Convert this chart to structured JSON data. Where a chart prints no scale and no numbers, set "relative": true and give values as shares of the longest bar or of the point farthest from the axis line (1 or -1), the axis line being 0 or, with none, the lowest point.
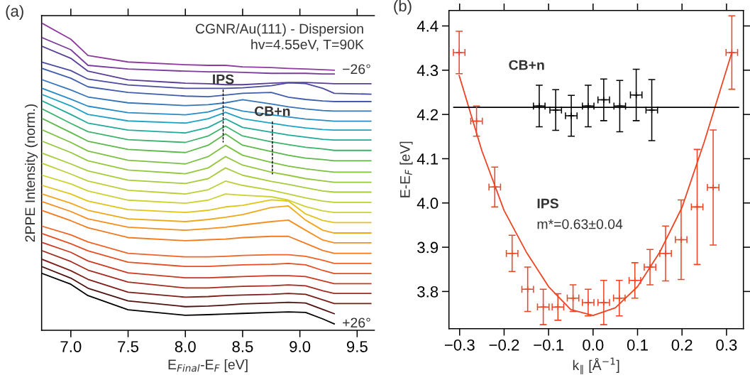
{
  "chart_data": [
    {
      "type": "line",
      "title": "(a)",
      "xlabel": "E$_{Final}$-E$_{F}$ [eV]",
      "ylabel": "2PPE Intensity (norm.)",
      "relative": true,
      "xlim": [
        6.745,
        9.65
      ],
      "xticks": [
        {
          "value": 7.0,
          "label": "7.0"
        },
        7.5,
        {
          "value": 8.0,
          "label": "8.0"
        },
        8.5,
        {
          "value": 9.0,
          "label": "9.0"
        },
        9.5
      ],
      "x": [
        6.75,
        7.0,
        7.15,
        7.5,
        8.0,
        8.2,
        8.35,
        8.5,
        8.75,
        8.9,
        9.05,
        9.2,
        9.3,
        9.62
      ],
      "annotations": [
        "CGNR/Au(111) - Dispersion",
        "hv=4.55eV, T=90K",
        {
          "text": "IPS",
          "x": 8.33,
          "y": 0.613
        },
        {
          "text": "CB+n",
          "x": 8.76,
          "y": 0.509
        }
      ],
      "series": [
        {
          "name": "−26°",
          "color": "#8e3a9f",
          "x": [
            6.75,
            7.0,
            7.15,
            7.5,
            8.0,
            8.2,
            8.35,
            8.5,
            8.75,
            8.9,
            9.05,
            9.2,
            9.3
          ],
          "values": [
            1.0,
            0.948,
            0.895,
            0.874,
            0.865,
            0.863,
            0.863,
            0.858,
            0.856,
            0.853,
            0.851,
            0.849,
            0.847
          ]
        },
        {
          "color": "#7b3c9c",
          "x": [
            6.75,
            7.0,
            7.15,
            7.5,
            8.0,
            8.2,
            8.35,
            8.5,
            8.75,
            8.9,
            9.05,
            9.2,
            9.3
          ],
          "values": [
            0.953,
            0.914,
            0.863,
            0.851,
            0.844,
            0.842,
            0.842,
            0.84,
            0.837,
            0.837,
            0.837,
            0.835,
            0.835
          ]
        },
        {
          "color": "#5a3f98",
          "values": [
            0.925,
            0.886,
            0.844,
            0.816,
            0.805,
            0.803,
            0.8,
            0.8,
            0.805,
            0.807,
            0.807,
            0.805,
            0.803,
            0.803
          ]
        },
        {
          "color": "#4a4c9e",
          "values": [
            0.873,
            0.846,
            0.818,
            0.799,
            0.788,
            0.788,
            0.788,
            0.79,
            0.797,
            0.806,
            0.804,
            0.788,
            0.772,
            0.769
          ]
        },
        {
          "color": "#3f5fab",
          "values": [
            0.853,
            0.821,
            0.793,
            0.775,
            0.763,
            0.761,
            0.766,
            0.772,
            0.775,
            0.759,
            0.752,
            0.747,
            0.745,
            0.745
          ]
        },
        {
          "color": "#3575b8",
          "values": [
            0.816,
            0.783,
            0.76,
            0.741,
            0.732,
            0.735,
            0.741,
            0.751,
            0.737,
            0.728,
            0.721,
            0.716,
            0.714,
            0.714
          ]
        },
        {
          "color": "#2a8cc4",
          "values": [
            0.788,
            0.753,
            0.73,
            0.709,
            0.702,
            0.711,
            0.728,
            0.714,
            0.702,
            0.695,
            0.688,
            0.684,
            0.681,
            0.681
          ]
        },
        {
          "color": "#1ea3c4",
          "values": [
            0.768,
            0.731,
            0.703,
            0.682,
            0.675,
            0.689,
            0.71,
            0.689,
            0.675,
            0.666,
            0.659,
            0.654,
            0.652,
            0.652
          ]
        },
        {
          "color": "#22a99a",
          "values": [
            0.747,
            0.703,
            0.675,
            0.652,
            0.643,
            0.661,
            0.689,
            0.661,
            0.645,
            0.636,
            0.629,
            0.622,
            0.62,
            0.62
          ]
        },
        {
          "color": "#3db36e",
          "values": [
            0.721,
            0.674,
            0.647,
            0.621,
            0.612,
            0.633,
            0.665,
            0.633,
            0.614,
            0.605,
            0.596,
            0.591,
            0.586,
            0.586
          ]
        },
        {
          "color": "#5cb94a",
          "values": [
            0.69,
            0.644,
            0.616,
            0.589,
            0.579,
            0.603,
            0.64,
            0.603,
            0.582,
            0.57,
            0.561,
            0.556,
            0.552,
            0.552
          ]
        },
        {
          "color": "#7cc142",
          "values": [
            0.653,
            0.612,
            0.584,
            0.554,
            0.542,
            0.566,
            0.603,
            0.57,
            0.547,
            0.535,
            0.526,
            0.519,
            0.515,
            0.515
          ]
        },
        {
          "color": "#95c83d",
          "values": [
            0.616,
            0.579,
            0.552,
            0.522,
            0.51,
            0.529,
            0.566,
            0.538,
            0.515,
            0.505,
            0.494,
            0.487,
            0.482,
            0.482
          ]
        },
        {
          "color": "#a8cc3a",
          "values": [
            0.577,
            0.542,
            0.519,
            0.489,
            0.478,
            0.494,
            0.529,
            0.505,
            0.485,
            0.475,
            0.464,
            0.454,
            0.45,
            0.45
          ]
        },
        {
          "color": "#bccf36",
          "values": [
            0.544,
            0.509,
            0.486,
            0.456,
            0.444,
            0.458,
            0.486,
            0.472,
            0.456,
            0.444,
            0.431,
            0.421,
            0.417,
            0.417
          ]
        },
        {
          "color": "#cdd22f",
          "values": [
            0.505,
            0.477,
            0.454,
            0.424,
            0.414,
            0.424,
            0.444,
            0.44,
            0.435,
            0.424,
            0.403,
            0.389,
            0.384,
            0.384
          ]
        },
        {
          "color": "#e1c419",
          "values": [
            0.472,
            0.444,
            0.421,
            0.393,
            0.384,
            0.391,
            0.402,
            0.407,
            0.425,
            0.421,
            0.379,
            0.358,
            0.351,
            0.351
          ]
        },
        {
          "color": "#f0a81a",
          "values": [
            0.444,
            0.414,
            0.391,
            0.363,
            0.354,
            0.361,
            0.368,
            0.377,
            0.4,
            0.405,
            0.359,
            0.326,
            0.317,
            0.317
          ]
        },
        {
          "color": "#f58e1f",
          "values": [
            0.419,
            0.387,
            0.363,
            0.336,
            0.326,
            0.331,
            0.336,
            0.343,
            0.354,
            0.359,
            0.326,
            0.294,
            0.285,
            0.285
          ]
        },
        {
          "color": "#f47a20",
          "values": [
            0.39,
            0.357,
            0.334,
            0.302,
            0.292,
            0.295,
            0.297,
            0.302,
            0.306,
            0.306,
            0.283,
            0.26,
            0.251,
            0.251
          ]
        },
        {
          "color": "#ee6424",
          "values": [
            0.339,
            0.311,
            0.288,
            0.251,
            0.239,
            0.239,
            0.241,
            0.244,
            0.246,
            0.246,
            0.241,
            0.228,
            0.218,
            0.218
          ]
        },
        {
          "color": "#e44f25",
          "values": [
            0.315,
            0.282,
            0.259,
            0.222,
            0.208,
            0.208,
            0.211,
            0.213,
            0.215,
            0.218,
            0.213,
            0.195,
            0.185,
            0.185
          ]
        },
        {
          "color": "#c83a22",
          "values": [
            0.286,
            0.254,
            0.226,
            0.187,
            0.171,
            0.171,
            0.173,
            0.175,
            0.178,
            0.178,
            0.175,
            0.161,
            0.152,
            0.152
          ]
        },
        {
          "color": "#a32b1f",
          "values": [
            0.259,
            0.224,
            0.196,
            0.157,
            0.138,
            0.138,
            0.141,
            0.143,
            0.145,
            0.148,
            0.145,
            0.129,
            0.12,
            0.12
          ]
        },
        {
          "color": "#7c1d17",
          "values": [
            0.231,
            0.194,
            0.166,
            0.124,
            0.108,
            0.11,
            0.113,
            0.115,
            0.117,
            0.12,
            0.117,
            0.099,
            0.087,
            0.087
          ]
        },
        {
          "color": "#4e120f",
          "x": [
            6.75,
            7.0,
            7.15,
            7.5,
            8.0,
            8.2,
            8.35,
            8.5,
            8.75,
            8.9,
            9.05,
            9.2,
            9.3
          ],
          "values": [
            0.207,
            0.17,
            0.137,
            0.096,
            0.077,
            0.079,
            0.082,
            0.086,
            0.089,
            0.091,
            0.089,
            0.068,
            0.054
          ]
        },
        {
          "name": "+26°",
          "color": "#000000",
          "x": [
            6.75,
            7.0,
            7.15,
            7.5,
            8.0,
            8.2,
            8.35,
            8.5,
            8.75,
            8.9,
            9.05,
            9.2,
            9.3
          ],
          "values": [
            0.185,
            0.15,
            0.113,
            0.067,
            0.049,
            0.051,
            0.053,
            0.055,
            0.058,
            0.06,
            0.058,
            0.037,
            0.021
          ]
        }
      ]
    },
    {
      "type": "scatter",
      "title": "(b)",
      "xlabel": "k$_{∥}$ [Å$^{−1}$]",
      "ylabel": "E-E$_{F}$ [eV]",
      "marker": "cross",
      "xlim": [
        -0.324,
        0.338
      ],
      "xticks": [
        {
          "value": -0.3,
          "label": "−0.3"
        },
        {
          "value": -0.2,
          "label": "−0.2"
        },
        {
          "value": -0.1,
          "label": "−0.1"
        },
        {
          "value": 0.0,
          "label": "0.0"
        },
        0.1,
        0.2,
        0.3
      ],
      "ylim": [
        3.716,
        4.435
      ],
      "yticks": [
        3.8,
        3.9,
        {
          "value": 4.0,
          "label": "4.0"
        },
        4.1,
        4.2,
        4.3,
        4.4
      ],
      "annotations": [
        "CB+n",
        "IPS",
        "m*=0.63±0.04"
      ],
      "series": [
        {
          "type": "line",
          "marker": "none",
          "color": "#ee4423",
          "x": [
            -0.301,
            -0.25,
            -0.2,
            -0.15,
            -0.1,
            -0.05,
            0.0,
            0.05,
            0.1,
            0.15,
            0.2,
            0.25,
            0.312
          ],
          "values": [
            4.288,
            4.118,
            3.983,
            3.889,
            3.811,
            3.759,
            3.746,
            3.763,
            3.811,
            3.889,
            3.99,
            4.138,
            4.34
          ]
        },
        {
          "type": "line",
          "marker": "none",
          "color": "#000000",
          "x": [
            -0.313,
            0.327
          ],
          "values": [
            4.216,
            4.216
          ]
        },
        {
          "color": "#ee4423",
          "x": [
            -0.301,
            -0.262,
            -0.221,
            -0.182,
            -0.147,
            -0.112,
            -0.079,
            -0.045,
            -0.011,
            0.024,
            0.059,
            0.094,
            0.128,
            0.163,
            0.198,
            0.234,
            0.27,
            0.312
          ],
          "values": [
            4.34,
            4.185,
            4.036,
            3.886,
            3.805,
            3.765,
            3.765,
            3.785,
            3.775,
            3.775,
            3.785,
            3.825,
            3.855,
            3.886,
            3.917,
            3.991,
            4.035,
            4.34
          ],
          "errors": [
            0.048,
            0.034,
            0.045,
            0.041,
            0.05,
            0.04,
            0.03,
            0.03,
            0.03,
            0.05,
            0.04,
            0.04,
            0.04,
            0.062,
            0.09,
            0.13,
            0.13,
            0.083
          ],
          "xerrors": [
            0.013,
            0.013,
            0.013,
            0.013,
            0.013,
            0.013,
            0.013,
            0.013,
            0.013,
            0.013,
            0.013,
            0.013,
            0.013,
            0.013,
            0.013,
            0.013,
            0.013,
            0.013
          ]
        },
        {
          "color": "#000000",
          "x": [
            -0.121,
            -0.084,
            -0.049,
            -0.011,
            0.024,
            0.06,
            0.097,
            0.132
          ],
          "values": [
            4.219,
            4.21,
            4.197,
            4.219,
            4.233,
            4.219,
            4.244,
            4.21
          ],
          "errors": [
            0.047,
            0.046,
            0.046,
            0.047,
            0.047,
            0.058,
            0.058,
            0.069
          ],
          "xerrors": [
            0.013,
            0.013,
            0.013,
            0.013,
            0.013,
            0.013,
            0.013,
            0.013
          ]
        }
      ]
    }
  ]
}
